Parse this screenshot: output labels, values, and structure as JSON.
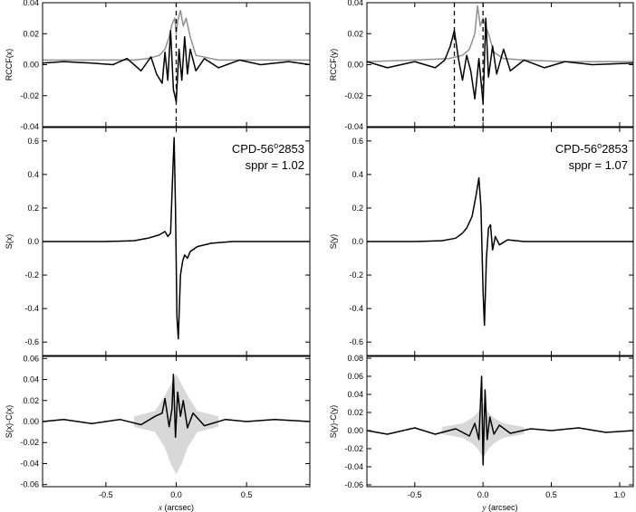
{
  "chart_data": [
    {
      "type": "line",
      "panel": "top-left",
      "ylabel": "RCCF(x)",
      "xlim": [
        -0.95,
        0.95
      ],
      "ylim": [
        -0.04,
        0.04
      ],
      "yticks": [
        "-0.04",
        "-0.02",
        "0.00",
        "0.02",
        "0.04"
      ],
      "ytick_values": [
        -0.04,
        -0.02,
        0.0,
        0.02,
        0.04
      ],
      "vlines": [
        0.0
      ],
      "series": [
        {
          "color": "#909090",
          "x": [
            -0.95,
            -0.6,
            -0.3,
            -0.2,
            -0.12,
            -0.08,
            -0.05,
            -0.03,
            -0.01,
            0.0,
            0.01,
            0.03,
            0.05,
            0.07,
            0.1,
            0.14,
            0.3,
            0.6,
            0.95
          ],
          "values": [
            0.003,
            0.003,
            0.003,
            0.004,
            0.006,
            0.01,
            0.018,
            0.026,
            0.03,
            0.02,
            0.028,
            0.035,
            0.025,
            0.03,
            0.018,
            0.006,
            0.003,
            0.003,
            0.003
          ]
        },
        {
          "color": "#000000",
          "x": [
            -0.95,
            -0.8,
            -0.6,
            -0.45,
            -0.35,
            -0.25,
            -0.18,
            -0.14,
            -0.1,
            -0.08,
            -0.06,
            -0.04,
            -0.02,
            0.0,
            0.02,
            0.04,
            0.06,
            0.08,
            0.1,
            0.14,
            0.2,
            0.3,
            0.45,
            0.6,
            0.8,
            0.95
          ],
          "values": [
            0.001,
            0.002,
            0.001,
            0.0,
            0.004,
            -0.004,
            0.005,
            -0.006,
            -0.012,
            0.008,
            -0.01,
            0.022,
            -0.016,
            -0.024,
            0.01,
            -0.01,
            0.018,
            -0.006,
            0.01,
            -0.004,
            0.004,
            -0.002,
            0.003,
            0.0,
            0.002,
            0.0
          ]
        }
      ]
    },
    {
      "type": "line",
      "panel": "top-right",
      "ylabel": "RCCF(y)",
      "xlim": [
        -0.85,
        1.1
      ],
      "ylim": [
        -0.04,
        0.04
      ],
      "yticks": [
        "-0.04",
        "-0.02",
        "0.00",
        "0.02",
        "0.04"
      ],
      "ytick_values": [
        -0.04,
        -0.02,
        0.0,
        0.02,
        0.04
      ],
      "vlines": [
        -0.21,
        0.0
      ],
      "series": [
        {
          "color": "#909090",
          "x": [
            -0.85,
            -0.5,
            -0.25,
            -0.15,
            -0.1,
            -0.06,
            -0.04,
            -0.02,
            0.0,
            0.02,
            0.04,
            0.08,
            0.15,
            0.3,
            0.6,
            1.1
          ],
          "values": [
            0.002,
            0.003,
            0.004,
            0.006,
            0.01,
            0.02,
            0.038,
            0.025,
            0.03,
            0.024,
            0.02,
            0.008,
            0.004,
            0.003,
            0.002,
            0.002
          ]
        },
        {
          "color": "#000000",
          "x": [
            -0.85,
            -0.7,
            -0.5,
            -0.35,
            -0.28,
            -0.24,
            -0.21,
            -0.18,
            -0.15,
            -0.12,
            -0.09,
            -0.06,
            -0.03,
            0.0,
            0.02,
            0.04,
            0.07,
            0.1,
            0.15,
            0.2,
            0.3,
            0.45,
            0.6,
            0.8,
            1.1
          ],
          "values": [
            0.002,
            -0.002,
            0.002,
            -0.002,
            0.003,
            0.012,
            0.022,
            0.004,
            -0.01,
            0.006,
            -0.004,
            -0.022,
            0.004,
            -0.025,
            0.03,
            -0.008,
            0.012,
            -0.006,
            0.01,
            -0.004,
            0.003,
            -0.002,
            0.002,
            0.0,
            0.001
          ]
        }
      ]
    },
    {
      "type": "line",
      "panel": "middle-left",
      "ylabel": "S(x)",
      "title_line1": "CPD-56",
      "title_sup": "o",
      "title_line1_end": "2853",
      "title_line2": "sppr = 1.02",
      "xlim": [
        -0.95,
        0.95
      ],
      "ylim": [
        -0.68,
        0.68
      ],
      "yticks": [
        "-0.6",
        "-0.4",
        "-0.2",
        "0.0",
        "0.2",
        "0.4",
        "0.6"
      ],
      "ytick_values": [
        -0.6,
        -0.4,
        -0.2,
        0.0,
        0.2,
        0.4,
        0.6
      ],
      "series": [
        {
          "color": "#000000",
          "x": [
            -0.95,
            -0.5,
            -0.3,
            -0.2,
            -0.12,
            -0.08,
            -0.06,
            -0.04,
            -0.025,
            -0.015,
            -0.005,
            0.005,
            0.015,
            0.03,
            0.045,
            0.06,
            0.08,
            0.1,
            0.15,
            0.25,
            0.4,
            0.6,
            0.95
          ],
          "values": [
            0.0,
            0.0,
            0.005,
            0.02,
            0.04,
            0.06,
            0.03,
            0.05,
            0.4,
            0.62,
            0.2,
            -0.45,
            -0.58,
            -0.2,
            -0.12,
            -0.08,
            -0.1,
            -0.06,
            -0.03,
            -0.01,
            0.0,
            0.0,
            0.0
          ]
        }
      ]
    },
    {
      "type": "line",
      "panel": "middle-right",
      "ylabel": "S(y)",
      "title_line1": "CPD-56",
      "title_sup": "o",
      "title_line1_end": "2853",
      "title_line2": "sppr = 1.07",
      "xlim": [
        -0.85,
        1.1
      ],
      "ylim": [
        -0.68,
        0.68
      ],
      "yticks": [
        "-0.6",
        "-0.4",
        "-0.2",
        "0.0",
        "0.2",
        "0.4",
        "0.6"
      ],
      "ytick_values": [
        -0.6,
        -0.4,
        -0.2,
        0.0,
        0.2,
        0.4,
        0.6
      ],
      "series": [
        {
          "color": "#000000",
          "x": [
            -0.85,
            -0.5,
            -0.3,
            -0.2,
            -0.15,
            -0.12,
            -0.08,
            -0.05,
            -0.03,
            -0.015,
            0.0,
            0.01,
            0.025,
            0.04,
            0.055,
            0.07,
            0.09,
            0.12,
            0.18,
            0.3,
            0.5,
            0.8,
            1.1
          ],
          "values": [
            0.0,
            0.0,
            0.005,
            0.02,
            0.05,
            0.08,
            0.15,
            0.28,
            0.38,
            0.2,
            -0.3,
            -0.5,
            -0.1,
            0.08,
            0.1,
            -0.05,
            0.03,
            -0.02,
            0.01,
            0.0,
            0.0,
            0.0,
            0.0
          ]
        }
      ]
    },
    {
      "type": "line",
      "panel": "bottom-left",
      "ylabel": "S(x)-C(x)",
      "xlabel_var": "x",
      "xlabel_unit": " (arcsec)",
      "xlim": [
        -0.95,
        0.95
      ],
      "ylim": [
        -0.062,
        0.062
      ],
      "yticks": [
        "-0.06",
        "-0.04",
        "-0.02",
        "0.00",
        "0.02",
        "0.04",
        "0.06"
      ],
      "ytick_values": [
        -0.06,
        -0.04,
        -0.02,
        0.0,
        0.02,
        0.04,
        0.06
      ],
      "xticks": [
        "-0.5",
        "0.0",
        "0.5"
      ],
      "xtick_values": [
        -0.5,
        0.0,
        0.5
      ],
      "band": {
        "color": "#d8d8d8",
        "x": [
          -0.3,
          -0.15,
          -0.08,
          -0.04,
          0.0,
          0.04,
          0.08,
          0.15,
          0.3
        ],
        "upper": [
          0.005,
          0.01,
          0.025,
          0.035,
          0.045,
          0.035,
          0.025,
          0.01,
          0.005
        ],
        "lower": [
          -0.005,
          -0.01,
          -0.025,
          -0.04,
          -0.05,
          -0.04,
          -0.025,
          -0.01,
          -0.005
        ]
      },
      "series": [
        {
          "color": "#000000",
          "x": [
            -0.95,
            -0.8,
            -0.6,
            -0.4,
            -0.25,
            -0.15,
            -0.1,
            -0.08,
            -0.05,
            -0.03,
            -0.02,
            -0.005,
            0.01,
            0.03,
            0.05,
            0.08,
            0.12,
            0.2,
            0.35,
            0.5,
            0.7,
            0.95
          ],
          "values": [
            0.0,
            0.002,
            -0.002,
            0.002,
            -0.003,
            0.005,
            0.008,
            0.022,
            -0.005,
            0.012,
            0.045,
            -0.015,
            0.028,
            0.005,
            0.02,
            -0.006,
            0.008,
            -0.004,
            0.002,
            0.0,
            0.002,
            0.0
          ]
        }
      ]
    },
    {
      "type": "line",
      "panel": "bottom-right",
      "ylabel": "S(y)-C(y)",
      "xlabel_var": "y",
      "xlabel_unit": " (arcsec)",
      "xlim": [
        -0.85,
        1.1
      ],
      "ylim": [
        -0.062,
        0.082
      ],
      "yticks": [
        "-0.06",
        "-0.04",
        "-0.02",
        "0.00",
        "0.02",
        "0.04",
        "0.06",
        "0.08"
      ],
      "ytick_values": [
        -0.06,
        -0.04,
        -0.02,
        0.0,
        0.02,
        0.04,
        0.06,
        0.08
      ],
      "xticks": [
        "-0.5",
        "0.0",
        "0.5",
        "1.0"
      ],
      "xtick_values": [
        -0.5,
        0.0,
        0.5,
        1.0
      ],
      "band": {
        "color": "#d8d8d8",
        "x": [
          -0.3,
          -0.15,
          -0.08,
          -0.04,
          0.0,
          0.04,
          0.08,
          0.15,
          0.3
        ],
        "upper": [
          0.004,
          0.008,
          0.014,
          0.02,
          0.03,
          0.02,
          0.014,
          0.008,
          0.004
        ],
        "lower": [
          -0.004,
          -0.008,
          -0.014,
          -0.02,
          -0.03,
          -0.02,
          -0.014,
          -0.008,
          -0.004
        ]
      },
      "series": [
        {
          "color": "#000000",
          "x": [
            -0.85,
            -0.7,
            -0.5,
            -0.35,
            -0.2,
            -0.1,
            -0.06,
            -0.03,
            -0.01,
            0.0,
            0.015,
            0.03,
            0.05,
            0.08,
            0.12,
            0.2,
            0.35,
            0.5,
            0.7,
            0.9,
            1.1
          ],
          "values": [
            0.0,
            -0.004,
            0.003,
            -0.004,
            0.002,
            -0.006,
            0.008,
            -0.01,
            0.06,
            -0.038,
            0.045,
            -0.01,
            0.015,
            -0.004,
            0.006,
            -0.003,
            0.002,
            0.0,
            0.003,
            -0.002,
            0.0
          ]
        }
      ]
    }
  ]
}
